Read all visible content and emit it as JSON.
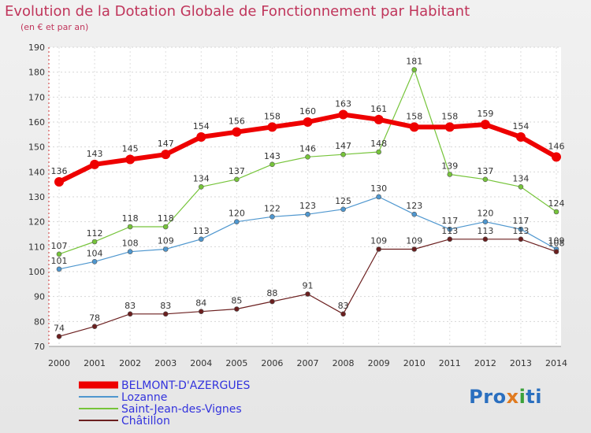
{
  "title": "Evolution de la Dotation Globale de Fonctionnement par Habitant",
  "subtitle": "(en € et par an)",
  "logo": {
    "text": "Proxiti"
  },
  "colors": {
    "belmont": "#ee0000",
    "lozanne": "#4f97cf",
    "saint_jean": "#76c43a",
    "chatillon": "#6b1f1f",
    "legend_text": "#3333dd",
    "axis_text": "#333333"
  },
  "chart_data": {
    "type": "line",
    "title": "Evolution de la Dotation Globale de Fonctionnement par Habitant",
    "subtitle": "(en € et par an)",
    "xlabel": "",
    "ylabel": "",
    "ylim": [
      70,
      190
    ],
    "yticks": [
      70,
      80,
      90,
      100,
      110,
      120,
      130,
      140,
      150,
      160,
      170,
      180,
      190
    ],
    "grid": true,
    "legend_position": "bottom-left",
    "x": [
      "2000",
      "2001",
      "2002",
      "2003",
      "2004",
      "2005",
      "2006",
      "2007",
      "2008",
      "2009",
      "2010",
      "2011",
      "2012",
      "2013",
      "2014"
    ],
    "series": [
      {
        "name": "BELMONT-D'AZERGUES",
        "color": "#ee0000",
        "width": 6,
        "radius": 6,
        "values": [
          136,
          143,
          145,
          147,
          154,
          156,
          158,
          160,
          163,
          161,
          158,
          158,
          159,
          154,
          146
        ]
      },
      {
        "name": "Lozanne",
        "color": "#4f97cf",
        "width": 1.2,
        "radius": 3,
        "values": [
          101,
          104,
          108,
          109,
          113,
          120,
          122,
          123,
          125,
          130,
          123,
          117,
          120,
          117,
          109
        ]
      },
      {
        "name": "Saint-Jean-des-Vignes",
        "color": "#76c43a",
        "width": 1.2,
        "radius": 3,
        "values": [
          107,
          112,
          118,
          118,
          134,
          137,
          143,
          146,
          147,
          148,
          181,
          139,
          137,
          134,
          124
        ]
      },
      {
        "name": "Châtillon",
        "color": "#6b1f1f",
        "width": 1.2,
        "radius": 3,
        "values": [
          74,
          78,
          83,
          83,
          84,
          85,
          88,
          91,
          83,
          109,
          109,
          113,
          113,
          113,
          108
        ]
      }
    ]
  }
}
